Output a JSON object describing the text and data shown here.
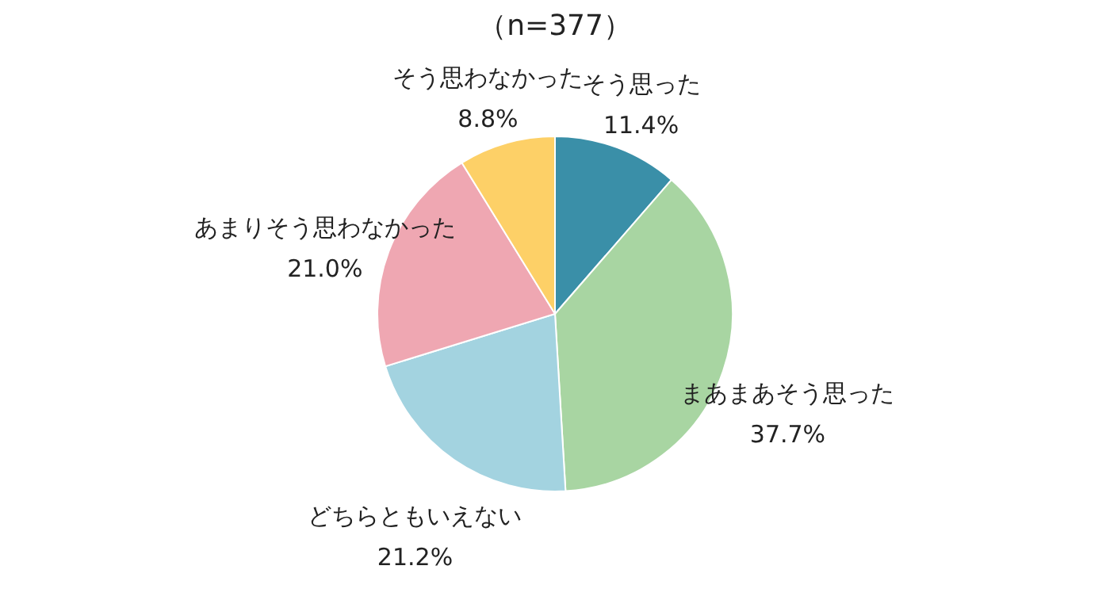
{
  "chart_data": {
    "type": "pie",
    "title": "（n=377）",
    "categories": [
      "そう思った",
      "まあまあそう思った",
      "どちらともいえない",
      "あまりそう思わなかった",
      "そう思わなかった"
    ],
    "values": [
      11.4,
      37.7,
      21.2,
      21.0,
      8.8
    ],
    "value_labels": [
      "11.4%",
      "37.7%",
      "21.2%",
      "21.0%",
      "8.8%"
    ],
    "colors": [
      "#3a8fa8",
      "#a8d5a2",
      "#a3d3e0",
      "#efa7b2",
      "#fdd067"
    ],
    "legend": false
  }
}
